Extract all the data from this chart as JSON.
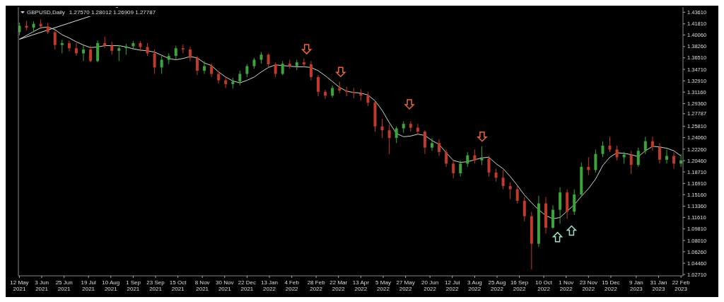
{
  "chart_data": {
    "type": "candlestick",
    "title": "GBPUSD,Daily",
    "subtitle": "1.27570 1.28012 1.26909 1.27787",
    "x": [
      "2021-05-12",
      "2021-05-19",
      "2021-05-26",
      "2021-06-02",
      "2021-06-09",
      "2021-06-16",
      "2021-06-23",
      "2021-06-30",
      "2021-07-07",
      "2021-07-14",
      "2021-07-21",
      "2021-07-28",
      "2021-08-04",
      "2021-08-11",
      "2021-08-18",
      "2021-08-25",
      "2021-09-01",
      "2021-09-08",
      "2021-09-15",
      "2021-09-22",
      "2021-09-29",
      "2021-10-06",
      "2021-10-13",
      "2021-10-20",
      "2021-10-27",
      "2021-11-03",
      "2021-11-10",
      "2021-11-17",
      "2021-11-24",
      "2021-12-01",
      "2021-12-08",
      "2021-12-15",
      "2021-12-22",
      "2021-12-29",
      "2022-01-05",
      "2022-01-12",
      "2022-01-19",
      "2022-01-26",
      "2022-02-02",
      "2022-02-09",
      "2022-02-16",
      "2022-02-23",
      "2022-03-02",
      "2022-03-09",
      "2022-03-16",
      "2022-03-23",
      "2022-03-30",
      "2022-04-06",
      "2022-04-13",
      "2022-04-20",
      "2022-04-27",
      "2022-05-04",
      "2022-05-11",
      "2022-05-18",
      "2022-05-25",
      "2022-06-01",
      "2022-06-08",
      "2022-06-15",
      "2022-06-22",
      "2022-06-29",
      "2022-07-06",
      "2022-07-13",
      "2022-07-20",
      "2022-07-27",
      "2022-08-03",
      "2022-08-10",
      "2022-08-17",
      "2022-08-24",
      "2022-08-31",
      "2022-09-07",
      "2022-09-14",
      "2022-09-21",
      "2022-09-28",
      "2022-10-05",
      "2022-10-12",
      "2022-10-19",
      "2022-10-26",
      "2022-11-02",
      "2022-11-09",
      "2022-11-16",
      "2022-11-23",
      "2022-11-30",
      "2022-12-07",
      "2022-12-14",
      "2022-12-21",
      "2022-12-28",
      "2023-01-04",
      "2023-01-11",
      "2023-01-18",
      "2023-01-25",
      "2023-02-01",
      "2023-02-08",
      "2023-02-15",
      "2023-02-22"
    ],
    "ohlc": [
      [
        1.405,
        1.42,
        1.4,
        1.415
      ],
      [
        1.415,
        1.423,
        1.408,
        1.412
      ],
      [
        1.412,
        1.422,
        1.405,
        1.418
      ],
      [
        1.418,
        1.425,
        1.41,
        1.414
      ],
      [
        1.414,
        1.42,
        1.402,
        1.405
      ],
      [
        1.405,
        1.408,
        1.378,
        1.385
      ],
      [
        1.385,
        1.393,
        1.372,
        1.388
      ],
      [
        1.388,
        1.392,
        1.375,
        1.38
      ],
      [
        1.38,
        1.388,
        1.368,
        1.372
      ],
      [
        1.372,
        1.385,
        1.36,
        1.378
      ],
      [
        1.378,
        1.384,
        1.358,
        1.36
      ],
      [
        1.36,
        1.392,
        1.358,
        1.388
      ],
      [
        1.388,
        1.398,
        1.38,
        1.384
      ],
      [
        1.384,
        1.39,
        1.37,
        1.376
      ],
      [
        1.376,
        1.385,
        1.36,
        1.38
      ],
      [
        1.38,
        1.387,
        1.37,
        1.383
      ],
      [
        1.383,
        1.391,
        1.378,
        1.388
      ],
      [
        1.388,
        1.391,
        1.375,
        1.382
      ],
      [
        1.382,
        1.388,
        1.368,
        1.372
      ],
      [
        1.372,
        1.378,
        1.34,
        1.35
      ],
      [
        1.35,
        1.368,
        1.34,
        1.362
      ],
      [
        1.362,
        1.372,
        1.355,
        1.368
      ],
      [
        1.368,
        1.384,
        1.362,
        1.38
      ],
      [
        1.38,
        1.386,
        1.372,
        1.378
      ],
      [
        1.378,
        1.382,
        1.36,
        1.365
      ],
      [
        1.365,
        1.368,
        1.338,
        1.345
      ],
      [
        1.345,
        1.36,
        1.34,
        1.352
      ],
      [
        1.352,
        1.356,
        1.335,
        1.34
      ],
      [
        1.34,
        1.345,
        1.325,
        1.33
      ],
      [
        1.33,
        1.336,
        1.318,
        1.324
      ],
      [
        1.324,
        1.334,
        1.317,
        1.328
      ],
      [
        1.328,
        1.345,
        1.322,
        1.34
      ],
      [
        1.34,
        1.355,
        1.335,
        1.352
      ],
      [
        1.352,
        1.365,
        1.348,
        1.362
      ],
      [
        1.362,
        1.374,
        1.356,
        1.37
      ],
      [
        1.37,
        1.372,
        1.35,
        1.355
      ],
      [
        1.355,
        1.358,
        1.335,
        1.34
      ],
      [
        1.34,
        1.36,
        1.338,
        1.356
      ],
      [
        1.356,
        1.362,
        1.348,
        1.352
      ],
      [
        1.352,
        1.362,
        1.346,
        1.358
      ],
      [
        1.358,
        1.364,
        1.35,
        1.355
      ],
      [
        1.355,
        1.36,
        1.33,
        1.335
      ],
      [
        1.335,
        1.338,
        1.305,
        1.312
      ],
      [
        1.312,
        1.315,
        1.301,
        1.306
      ],
      [
        1.306,
        1.322,
        1.303,
        1.318
      ],
      [
        1.318,
        1.328,
        1.31,
        1.314
      ],
      [
        1.314,
        1.32,
        1.305,
        1.312
      ],
      [
        1.312,
        1.318,
        1.302,
        1.31
      ],
      [
        1.31,
        1.316,
        1.298,
        1.306
      ],
      [
        1.306,
        1.312,
        1.29,
        1.295
      ],
      [
        1.295,
        1.298,
        1.25,
        1.258
      ],
      [
        1.258,
        1.27,
        1.24,
        1.252
      ],
      [
        1.252,
        1.26,
        1.215,
        1.24
      ],
      [
        1.24,
        1.258,
        1.232,
        1.255
      ],
      [
        1.255,
        1.266,
        1.248,
        1.262
      ],
      [
        1.262,
        1.266,
        1.25,
        1.256
      ],
      [
        1.256,
        1.262,
        1.245,
        1.25
      ],
      [
        1.25,
        1.252,
        1.215,
        1.225
      ],
      [
        1.225,
        1.24,
        1.22,
        1.232
      ],
      [
        1.232,
        1.238,
        1.212,
        1.218
      ],
      [
        1.218,
        1.222,
        1.195,
        1.2
      ],
      [
        1.2,
        1.205,
        1.177,
        1.185
      ],
      [
        1.185,
        1.205,
        1.18,
        1.2
      ],
      [
        1.2,
        1.218,
        1.195,
        1.213
      ],
      [
        1.213,
        1.222,
        1.2,
        1.205
      ],
      [
        1.205,
        1.227,
        1.198,
        1.208
      ],
      [
        1.208,
        1.212,
        1.18,
        1.186
      ],
      [
        1.186,
        1.192,
        1.172,
        1.178
      ],
      [
        1.178,
        1.19,
        1.16,
        1.165
      ],
      [
        1.165,
        1.171,
        1.145,
        1.16
      ],
      [
        1.16,
        1.165,
        1.138,
        1.142
      ],
      [
        1.142,
        1.148,
        1.11,
        1.118
      ],
      [
        1.118,
        1.125,
        1.035,
        1.075
      ],
      [
        1.075,
        1.15,
        1.07,
        1.138
      ],
      [
        1.138,
        1.148,
        1.091,
        1.1
      ],
      [
        1.1,
        1.135,
        1.098,
        1.128
      ],
      [
        1.128,
        1.163,
        1.106,
        1.155
      ],
      [
        1.155,
        1.16,
        1.114,
        1.125
      ],
      [
        1.125,
        1.16,
        1.12,
        1.152
      ],
      [
        1.152,
        1.202,
        1.148,
        1.195
      ],
      [
        1.195,
        1.21,
        1.182,
        1.19
      ],
      [
        1.19,
        1.222,
        1.186,
        1.215
      ],
      [
        1.215,
        1.235,
        1.21,
        1.228
      ],
      [
        1.228,
        1.242,
        1.218,
        1.222
      ],
      [
        1.222,
        1.228,
        1.205,
        1.21
      ],
      [
        1.21,
        1.218,
        1.2,
        1.214
      ],
      [
        1.214,
        1.22,
        1.184,
        1.198
      ],
      [
        1.198,
        1.225,
        1.195,
        1.22
      ],
      [
        1.22,
        1.242,
        1.215,
        1.235
      ],
      [
        1.235,
        1.242,
        1.22,
        1.226
      ],
      [
        1.226,
        1.232,
        1.2,
        1.206
      ],
      [
        1.206,
        1.222,
        1.2,
        1.212
      ],
      [
        1.212,
        1.218,
        1.192,
        1.2
      ],
      [
        1.2,
        1.215,
        1.195,
        1.205
      ]
    ],
    "colors": [
      "#3da33d",
      "#c0392b",
      "#3da33d",
      "#c0392b",
      "#c0392b",
      "#c0392b",
      "#3da33d",
      "#c0392b",
      "#c0392b",
      "#3da33d",
      "#c0392b",
      "#3da33d",
      "#c0392b",
      "#c0392b",
      "#3da33d",
      "#3da33d",
      "#3da33d",
      "#c0392b",
      "#c0392b",
      "#c0392b",
      "#3da33d",
      "#3da33d",
      "#3da33d",
      "#c0392b",
      "#c0392b",
      "#c0392b",
      "#3da33d",
      "#c0392b",
      "#c0392b",
      "#c0392b",
      "#3da33d",
      "#3da33d",
      "#3da33d",
      "#3da33d",
      "#3da33d",
      "#c0392b",
      "#c0392b",
      "#3da33d",
      "#c0392b",
      "#3da33d",
      "#c0392b",
      "#c0392b",
      "#c0392b",
      "#c0392b",
      "#3da33d",
      "#c0392b",
      "#c0392b",
      "#c0392b",
      "#c0392b",
      "#c0392b",
      "#c0392b",
      "#c0392b",
      "#c0392b",
      "#3da33d",
      "#3da33d",
      "#c0392b",
      "#c0392b",
      "#c0392b",
      "#3da33d",
      "#c0392b",
      "#c0392b",
      "#c0392b",
      "#3da33d",
      "#3da33d",
      "#c0392b",
      "#3da33d",
      "#c0392b",
      "#c0392b",
      "#c0392b",
      "#c0392b",
      "#c0392b",
      "#c0392b",
      "#c0392b",
      "#3da33d",
      "#c0392b",
      "#3da33d",
      "#3da33d",
      "#c0392b",
      "#3da33d",
      "#3da33d",
      "#c0392b",
      "#3da33d",
      "#3da33d",
      "#c0392b",
      "#c0392b",
      "#3da33d",
      "#c0392b",
      "#3da33d",
      "#3da33d",
      "#c0392b",
      "#c0392b",
      "#3da33d",
      "#c0392b",
      "#3da33d"
    ],
    "series": [
      {
        "type": "line",
        "color": "#c8dcc8",
        "values": [
          1.394,
          1.4,
          1.406,
          1.412,
          1.413,
          1.409,
          1.401,
          1.396,
          1.39,
          1.385,
          1.381,
          1.382,
          1.384,
          1.384,
          1.384,
          1.382,
          1.379,
          1.377,
          1.376,
          1.374,
          1.369,
          1.364,
          1.362,
          1.364,
          1.367,
          1.365,
          1.357,
          1.353,
          1.343,
          1.335,
          1.329,
          1.326,
          1.33,
          1.335,
          1.343,
          1.35,
          1.354,
          1.353,
          1.352,
          1.351,
          1.351,
          1.35,
          1.345,
          1.337,
          1.328,
          1.319,
          1.313,
          1.311,
          1.31,
          1.307,
          1.298,
          1.283,
          1.264,
          1.247,
          1.242,
          1.243,
          1.246,
          1.244,
          1.236,
          1.23,
          1.217,
          1.205,
          1.202,
          1.203,
          1.206,
          1.209,
          1.21,
          1.2,
          1.192,
          1.18,
          1.166,
          1.151,
          1.139,
          1.128,
          1.119,
          1.114,
          1.116,
          1.126,
          1.136,
          1.149,
          1.161,
          1.176,
          1.197,
          1.21,
          1.217,
          1.216,
          1.214,
          1.211,
          1.22,
          1.227,
          1.226,
          1.224,
          1.22,
          1.212
        ]
      },
      {
        "type": "line",
        "color": "#e0e0e0",
        "x": [
          "2021-05-12",
          "2021-08-17"
        ],
        "values": [
          1.394,
          1.444
        ]
      }
    ],
    "xlim": [
      "2021-05-11",
      "2023-02-24"
    ],
    "xticks": [
      {
        "value": "2021-05-12",
        "label": "12 May 2021"
      },
      {
        "value": "2021-06-03",
        "label": "3 Jun 2021"
      },
      {
        "value": "2021-06-25",
        "label": "25 Jun 2021"
      },
      {
        "value": "2021-07-19",
        "label": "19 Jul 2021"
      },
      {
        "value": "2021-08-10",
        "label": "10 Aug 2021"
      },
      {
        "value": "2021-09-01",
        "label": "1 Sep 2021"
      },
      {
        "value": "2021-09-23",
        "label": "23 Sep 2021"
      },
      {
        "value": "2021-10-15",
        "label": "15 Oct 2021"
      },
      {
        "value": "2021-11-08",
        "label": "8 Nov 2021"
      },
      {
        "value": "2021-11-30",
        "label": "30 Nov 2021"
      },
      {
        "value": "2021-12-22",
        "label": "22 Dec 2021"
      },
      {
        "value": "2022-01-13",
        "label": "13 Jan 2022"
      },
      {
        "value": "2022-02-04",
        "label": "4 Feb 2022"
      },
      {
        "value": "2022-02-28",
        "label": "28 Feb 2022"
      },
      {
        "value": "2022-03-22",
        "label": "22 Mar 2022"
      },
      {
        "value": "2022-04-13",
        "label": "13 Apr 2022"
      },
      {
        "value": "2022-05-05",
        "label": "5 May 2022"
      },
      {
        "value": "2022-05-27",
        "label": "27 May 2022"
      },
      {
        "value": "2022-06-20",
        "label": "20 Jun 2022"
      },
      {
        "value": "2022-07-12",
        "label": "12 Jul 2022"
      },
      {
        "value": "2022-08-03",
        "label": "3 Aug 2022"
      },
      {
        "value": "2022-08-25",
        "label": "25 Aug 2022"
      },
      {
        "value": "2022-09-16",
        "label": "16 Sep 2022"
      },
      {
        "value": "2022-10-10",
        "label": "10 Oct 2022"
      },
      {
        "value": "2022-11-01",
        "label": "1 Nov 2022"
      },
      {
        "value": "2022-11-23",
        "label": "23 Nov 2022"
      },
      {
        "value": "2022-12-15",
        "label": "15 Dec 2022"
      },
      {
        "value": "2023-01-09",
        "label": "9 Jan 2023"
      },
      {
        "value": "2023-01-31",
        "label": "31 Jan 2023"
      },
      {
        "value": "2023-02-22",
        "label": "22 Feb 2023"
      }
    ],
    "ylim": [
      1.025,
      1.4442
    ],
    "yticks": [
      {
        "value": 1.4361,
        "label": "1.43610"
      },
      {
        "value": 1.4181,
        "label": "1.41810"
      },
      {
        "value": 1.4006,
        "label": "1.40060"
      },
      {
        "value": 1.3826,
        "label": "1.38260"
      },
      {
        "value": 1.3651,
        "label": "1.36510"
      },
      {
        "value": 1.3471,
        "label": "1.34710"
      },
      {
        "value": 1.3291,
        "label": "1.32910"
      },
      {
        "value": 1.3116,
        "label": "1.31160"
      },
      {
        "value": 1.2936,
        "label": "1.29360"
      },
      {
        "value": 1.27787,
        "label": "1.27787"
      },
      {
        "value": 1.2581,
        "label": "1.25810"
      },
      {
        "value": 1.2406,
        "label": "1.24060"
      },
      {
        "value": 1.2226,
        "label": "1.22260"
      },
      {
        "value": 1.2046,
        "label": "1.20460"
      },
      {
        "value": 1.1871,
        "label": "1.18710"
      },
      {
        "value": 1.1691,
        "label": "1.16910"
      },
      {
        "value": 1.1516,
        "label": "1.15160"
      },
      {
        "value": 1.1336,
        "label": "1.13360"
      },
      {
        "value": 1.1161,
        "label": "1.11610"
      },
      {
        "value": 1.0981,
        "label": "1.09810"
      },
      {
        "value": 1.0801,
        "label": "1.08010"
      },
      {
        "value": 1.0626,
        "label": "1.06260"
      },
      {
        "value": 1.0446,
        "label": "1.04460"
      },
      {
        "value": 1.0271,
        "label": "1.02710"
      }
    ]
  }
}
